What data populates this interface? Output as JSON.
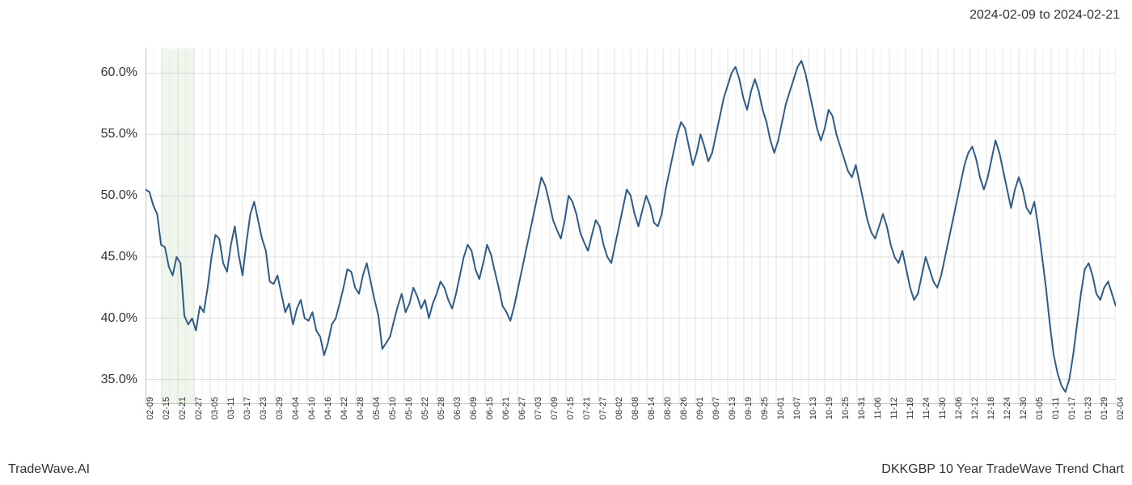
{
  "date_range": "2024-02-09 to 2024-02-21",
  "footer_left": "TradeWave.AI",
  "footer_right": "DKKGBP 10 Year TradeWave Trend Chart",
  "chart": {
    "type": "line",
    "background_color": "#ffffff",
    "line_color": "#2e5c8a",
    "line_width": 2,
    "grid_major_color": "#cccccc",
    "grid_minor_color": "#e5e5e5",
    "highlight_band_color": "#d8e8d0",
    "highlight_band_opacity": 0.4,
    "text_color": "#333333",
    "ylim": [
      33,
      62
    ],
    "y_ticks": [
      35,
      40,
      45,
      50,
      55,
      60
    ],
    "y_tick_labels": [
      "35.0%",
      "40.0%",
      "45.0%",
      "50.0%",
      "55.0%",
      "60.0%"
    ],
    "label_fontsize": 16,
    "x_label_fontsize": 11,
    "x_labels": [
      "02-09",
      "02-15",
      "02-21",
      "02-27",
      "03-05",
      "03-11",
      "03-17",
      "03-23",
      "03-29",
      "04-04",
      "04-10",
      "04-16",
      "04-22",
      "04-28",
      "05-04",
      "05-10",
      "05-16",
      "05-22",
      "05-28",
      "06-03",
      "06-09",
      "06-15",
      "06-21",
      "06-27",
      "07-03",
      "07-09",
      "07-15",
      "07-21",
      "07-27",
      "08-02",
      "08-08",
      "08-14",
      "08-20",
      "08-26",
      "09-01",
      "09-07",
      "09-13",
      "09-19",
      "09-25",
      "10-01",
      "10-07",
      "10-13",
      "10-19",
      "10-25",
      "10-31",
      "11-06",
      "11-12",
      "11-18",
      "11-24",
      "11-30",
      "12-06",
      "12-12",
      "12-18",
      "12-24",
      "12-30",
      "01-05",
      "01-11",
      "01-17",
      "01-23",
      "01-29",
      "02-04"
    ],
    "highlight_start_index": 1,
    "highlight_end_index": 3,
    "values": [
      50.5,
      50.3,
      49.2,
      48.5,
      46.0,
      45.8,
      44.2,
      43.5,
      45.0,
      44.5,
      40.2,
      39.5,
      40.0,
      39.0,
      41.0,
      40.5,
      42.5,
      45.0,
      46.8,
      46.5,
      44.5,
      43.8,
      46.0,
      47.5,
      45.2,
      43.5,
      46.2,
      48.5,
      49.5,
      48.0,
      46.5,
      45.5,
      43.0,
      42.8,
      43.5,
      42.0,
      40.5,
      41.2,
      39.5,
      40.8,
      41.5,
      40.0,
      39.8,
      40.5,
      39.0,
      38.5,
      37.0,
      38.0,
      39.5,
      40.0,
      41.2,
      42.5,
      44.0,
      43.8,
      42.5,
      42.0,
      43.5,
      44.5,
      43.0,
      41.5,
      40.2,
      37.5,
      38.0,
      38.5,
      39.8,
      41.0,
      42.0,
      40.5,
      41.2,
      42.5,
      41.8,
      40.8,
      41.5,
      40.0,
      41.2,
      42.0,
      43.0,
      42.5,
      41.5,
      40.8,
      42.0,
      43.5,
      45.0,
      46.0,
      45.5,
      44.0,
      43.2,
      44.5,
      46.0,
      45.2,
      43.8,
      42.5,
      41.0,
      40.5,
      39.8,
      41.0,
      42.5,
      44.0,
      45.5,
      47.0,
      48.5,
      50.0,
      51.5,
      50.8,
      49.5,
      48.0,
      47.2,
      46.5,
      48.0,
      50.0,
      49.5,
      48.5,
      47.0,
      46.2,
      45.5,
      46.8,
      48.0,
      47.5,
      46.0,
      45.0,
      44.5,
      46.0,
      47.5,
      49.0,
      50.5,
      50.0,
      48.5,
      47.5,
      48.8,
      50.0,
      49.2,
      47.8,
      47.5,
      48.5,
      50.5,
      52.0,
      53.5,
      55.0,
      56.0,
      55.5,
      54.0,
      52.5,
      53.5,
      55.0,
      54.0,
      52.8,
      53.5,
      55.0,
      56.5,
      58.0,
      59.0,
      60.0,
      60.5,
      59.5,
      58.0,
      57.0,
      58.5,
      59.5,
      58.5,
      57.0,
      56.0,
      54.5,
      53.5,
      54.5,
      56.0,
      57.5,
      58.5,
      59.5,
      60.5,
      61.0,
      60.0,
      58.5,
      57.0,
      55.5,
      54.5,
      55.5,
      57.0,
      56.5,
      55.0,
      54.0,
      53.0,
      52.0,
      51.5,
      52.5,
      51.0,
      49.5,
      48.0,
      47.0,
      46.5,
      47.5,
      48.5,
      47.5,
      46.0,
      45.0,
      44.5,
      45.5,
      44.0,
      42.5,
      41.5,
      42.0,
      43.5,
      45.0,
      44.0,
      43.0,
      42.5,
      43.5,
      45.0,
      46.5,
      48.0,
      49.5,
      51.0,
      52.5,
      53.5,
      54.0,
      53.0,
      51.5,
      50.5,
      51.5,
      53.0,
      54.5,
      53.5,
      52.0,
      50.5,
      49.0,
      50.5,
      51.5,
      50.5,
      49.0,
      48.5,
      49.5,
      47.5,
      45.0,
      42.5,
      39.5,
      37.0,
      35.5,
      34.5,
      34.0,
      35.0,
      37.0,
      39.5,
      42.0,
      44.0,
      44.5,
      43.5,
      42.0,
      41.5,
      42.5,
      43.0,
      42.0,
      41.0
    ]
  }
}
